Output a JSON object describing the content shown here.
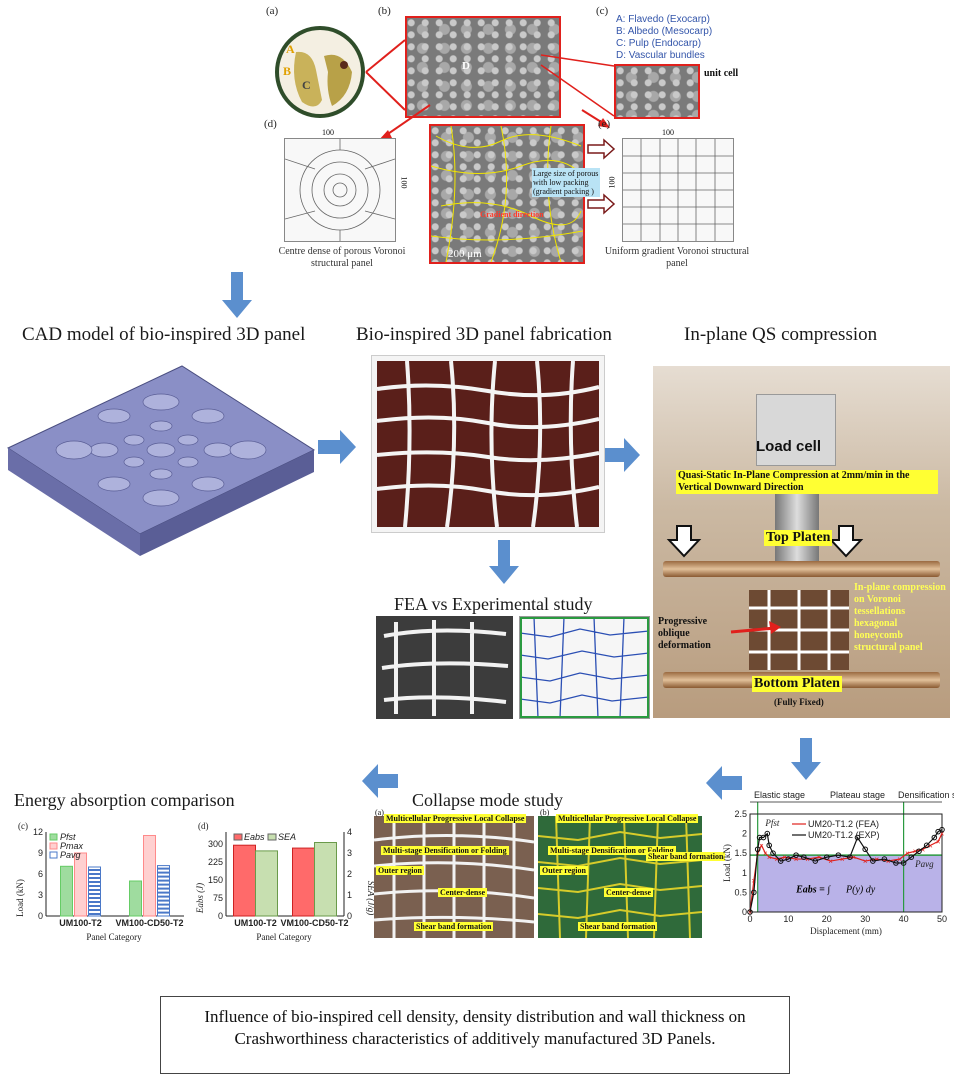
{
  "top": {
    "labels": {
      "a": "(a)",
      "b": "(b)",
      "c": "(c)",
      "d": "(d)",
      "e": "(e)"
    },
    "fruit_letters": {
      "A": "A",
      "B": "B",
      "C": "C"
    },
    "sem_center_label": "D",
    "legend": [
      {
        "key": "A:",
        "text": "Flavedo (Exocarp)"
      },
      {
        "key": "B:",
        "text": "Albedo (Mesocarp)"
      },
      {
        "key": "C:",
        "text": "Pulp (Endocarp)"
      },
      {
        "key": "D:",
        "text": "Vascular bundles"
      }
    ],
    "unit_cell": "unit cell",
    "dim_100": "100",
    "annotation_packing": "Large size of porous with low packing (gradient packing )",
    "annotation_gradient": "Gradient direction",
    "scale_200": "200 μm",
    "caption_d": "Centre dense of porous Voronoi structural panel",
    "caption_e": "Uniform gradient Voronoi structural panel"
  },
  "headings": {
    "cad": "CAD model of bio-inspired 3D panel",
    "fab": "Bio-inspired 3D panel fabrication",
    "qs": "In-plane QS compression",
    "fea": "FEA vs Experimental study",
    "collapse": "Collapse mode study",
    "energy": "Energy absorption comparison"
  },
  "compression": {
    "load_cell": "Load cell",
    "quasi": "Quasi-Static In-Plane Compression at 2mm/min in the Vertical Downward Direction",
    "top_platen": "Top Platen",
    "bottom_platen": "Bottom Platen",
    "fully_fixed": "(Fully Fixed)",
    "progressive": "Progressive oblique deformation",
    "inplane": "In-plane compression on Voronoi tessellations hexagonal honeycomb structural panel"
  },
  "collapse": {
    "a": "(a)",
    "b": "(b)",
    "multicell": "Multicellular Progressive Local Collapse",
    "multistage": "Multi-stage Densification or Folding",
    "outer": "Outer region",
    "center": "Center-dense",
    "shear": "Shear band formation"
  },
  "charts": {
    "bar_c": {
      "label": "(c)",
      "legend": [
        "Pfst",
        "Pmax",
        "Pavg"
      ],
      "ylabel": "Load (kN)",
      "xlabel": "Panel Category",
      "categories": [
        "UM100-T2",
        "VM100-CD50-T2"
      ],
      "yticks": [
        "0",
        "3",
        "6",
        "9",
        "12"
      ]
    },
    "bar_d": {
      "label": "(d)",
      "legend": [
        "Eabs",
        "SEA"
      ],
      "ylabel": "Eabs (J)",
      "y2label": "SEA (J/g)",
      "xlabel": "Panel Category",
      "categories": [
        "UM100-T2",
        "VM100-CD50-T2"
      ],
      "yticks": [
        "0",
        "75",
        "150",
        "225",
        "300"
      ],
      "y2ticks": [
        "0",
        "1",
        "2",
        "3",
        "4"
      ]
    },
    "line": {
      "stages": [
        "Elastic stage",
        "Plateau stage",
        "Densification stage"
      ],
      "legend": [
        "UM20-T1.2 (FEA)",
        "UM20-T1.2 (EXP)"
      ],
      "ylabel": "Load (kN)",
      "xlabel": "Displacement (mm)",
      "xticks": [
        "0",
        "10",
        "20",
        "30",
        "40",
        "50"
      ],
      "yticks": [
        "0",
        "0.5",
        "1",
        "1.5",
        "2",
        "2.5"
      ],
      "pfst": "Pfst",
      "pavg": "Pavg",
      "formula_lhs": "Eabs",
      "formula_rhs": "P(y) dy"
    }
  },
  "chart_data": [
    {
      "type": "bar",
      "title": "",
      "categories": [
        "UM100-T2",
        "VM100-CD50-T2"
      ],
      "series": [
        {
          "name": "Pfst",
          "values": [
            7.1,
            5.0
          ]
        },
        {
          "name": "Pmax",
          "values": [
            9.0,
            11.5
          ]
        },
        {
          "name": "Pavg",
          "values": [
            7.0,
            7.2
          ]
        }
      ],
      "xlabel": "Panel Category",
      "ylabel": "Load (kN)",
      "ylim": [
        0,
        12
      ]
    },
    {
      "type": "bar",
      "title": "",
      "categories": [
        "UM100-T2",
        "VM100-CD50-T2"
      ],
      "series": [
        {
          "name": "Eabs",
          "values": [
            295,
            283
          ],
          "axis": "left"
        },
        {
          "name": "SEA",
          "values": [
            3.1,
            3.5
          ],
          "axis": "right"
        }
      ],
      "xlabel": "Panel Category",
      "ylabel": "Eabs (J)",
      "y2label": "SEA (J/g)",
      "ylim": [
        0,
        350
      ],
      "y2lim": [
        0,
        4
      ]
    },
    {
      "type": "line",
      "title": "",
      "xlabel": "Displacement (mm)",
      "ylabel": "Load (kN)",
      "xlim": [
        0,
        50
      ],
      "ylim": [
        0,
        2.5
      ],
      "series": [
        {
          "name": "UM20-T1.2 (FEA)",
          "x": [
            0,
            1,
            2,
            3,
            4,
            5,
            7,
            9,
            12,
            15,
            18,
            21,
            24,
            27,
            30,
            33,
            36,
            39,
            41,
            43,
            45,
            47,
            49,
            50
          ],
          "y": [
            0,
            0.8,
            1.5,
            1.7,
            1.5,
            1.4,
            1.35,
            1.4,
            1.35,
            1.35,
            1.4,
            1.3,
            1.35,
            1.4,
            1.3,
            1.35,
            1.3,
            1.35,
            1.5,
            1.55,
            1.6,
            1.7,
            1.8,
            2.0
          ]
        },
        {
          "name": "UM20-T1.2 (EXP)",
          "x": [
            0,
            1,
            2,
            2.5,
            3.5,
            4.5,
            5,
            6,
            8,
            10,
            12,
            14,
            17,
            20,
            23,
            26,
            28,
            30,
            32,
            35,
            38,
            40,
            42,
            44,
            46,
            48,
            49,
            50
          ],
          "y": [
            0,
            0.5,
            1.6,
            1.9,
            1.9,
            2.0,
            1.7,
            1.5,
            1.3,
            1.35,
            1.45,
            1.4,
            1.3,
            1.4,
            1.45,
            1.4,
            1.9,
            1.6,
            1.3,
            1.35,
            1.25,
            1.25,
            1.4,
            1.55,
            1.7,
            1.9,
            2.05,
            2.1
          ]
        }
      ],
      "hlines": [
        {
          "name": "Pavg",
          "y": 1.45
        }
      ]
    }
  ],
  "footer": "Influence of bio-inspired cell density, density distribution and wall thickness  on Crashworthiness characteristics of additively manufactured 3D Panels."
}
